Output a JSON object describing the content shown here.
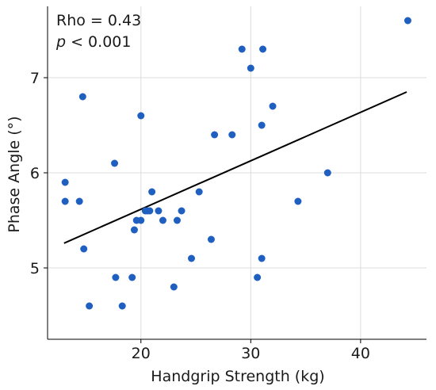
{
  "chart_data": {
    "type": "scatter",
    "title": "",
    "xlabel": "Handgrip Strength (kg)",
    "ylabel": "Phase Angle (°)",
    "xlim": [
      11.5,
      46
    ],
    "ylim": [
      4.25,
      7.75
    ],
    "xticks": [
      20,
      30,
      40
    ],
    "yticks": [
      5,
      6,
      7
    ],
    "grid": true,
    "annotations": {
      "rho": "Rho = 0.43",
      "p_symbol": "p",
      "p_rest": " < 0.001"
    },
    "colors": {
      "points": "#1f5fbf",
      "fit_line": "#000000"
    },
    "fit_line": {
      "x": [
        13.0,
        44.2
      ],
      "y": [
        5.26,
        6.85
      ]
    },
    "series": [
      {
        "x": [
          44.3,
          29.2,
          31.1,
          30.0,
          14.7,
          32.0,
          20.0,
          31.0,
          26.7,
          28.3,
          17.6,
          37.0,
          13.1,
          13.1,
          14.4,
          34.3,
          21.0,
          25.3,
          20.4,
          20.6,
          20.8,
          19.6,
          20.0,
          21.6,
          22.0,
          23.3,
          23.7,
          19.4,
          14.8,
          26.4,
          24.6,
          31.0,
          17.7,
          19.2,
          30.6,
          23.0,
          15.3,
          18.3
        ],
        "y": [
          7.6,
          7.3,
          7.3,
          7.1,
          6.8,
          6.7,
          6.6,
          6.5,
          6.4,
          6.4,
          6.1,
          6.0,
          5.9,
          5.7,
          5.7,
          5.7,
          5.8,
          5.8,
          5.6,
          5.6,
          5.6,
          5.5,
          5.5,
          5.6,
          5.5,
          5.5,
          5.6,
          5.4,
          5.2,
          5.3,
          5.1,
          5.1,
          4.9,
          4.9,
          4.9,
          4.8,
          4.6,
          4.6
        ]
      }
    ]
  }
}
